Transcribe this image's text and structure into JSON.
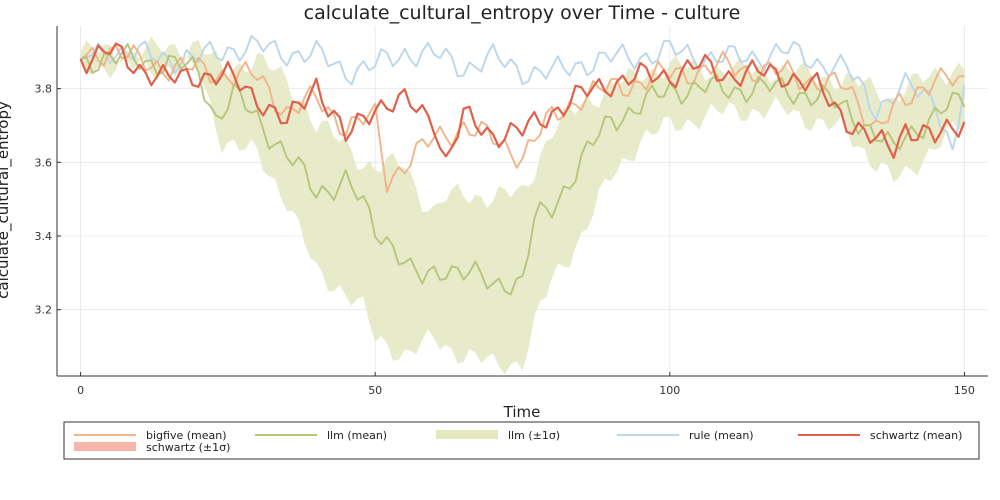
{
  "chart_data": {
    "type": "line",
    "title": "calculate_cultural_entropy over Time - culture",
    "xlabel": "Time",
    "ylabel": "calculate_cultural_entropy",
    "xlim": [
      -4,
      154
    ],
    "ylim": [
      3.02,
      3.97
    ],
    "x_ticks": [
      0,
      50,
      100,
      150
    ],
    "y_ticks": [
      3.2,
      3.4,
      3.6,
      3.8
    ],
    "x_tick_labels": [
      "0",
      "50",
      "100",
      "150"
    ],
    "y_tick_labels": [
      "3.2",
      "3.4",
      "3.6",
      "3.8"
    ],
    "grid": true,
    "legend_position": "bottom",
    "x_step": 1,
    "legend": [
      {
        "label": "bigfive (mean)",
        "kind": "line",
        "color": "#f2b48a"
      },
      {
        "label": "llm (mean)",
        "kind": "line",
        "color": "#b8c57a"
      },
      {
        "label": "llm (±1σ)",
        "kind": "band",
        "color": "#e3e8bf"
      },
      {
        "label": "rule (mean)",
        "kind": "line",
        "color": "#bcd6eb"
      },
      {
        "label": "schwartz (mean)",
        "kind": "line",
        "color": "#e0604a"
      },
      {
        "label": "schwartz (±1σ)",
        "kind": "band",
        "color": "#f5b5a8"
      }
    ],
    "series": [
      {
        "name": "llm (±1σ)",
        "kind": "band",
        "color": "#e3e8bf",
        "keypoints_x": [
          0,
          10,
          20,
          24,
          30,
          35,
          38,
          40,
          45,
          48,
          50,
          55,
          58,
          60,
          62,
          65,
          70,
          75,
          78,
          80,
          85,
          90,
          95,
          100,
          110,
          120,
          130,
          135,
          138,
          140,
          145,
          150
        ],
        "keypoints_upper": [
          3.9,
          3.9,
          3.92,
          3.85,
          3.88,
          3.82,
          3.76,
          3.7,
          3.65,
          3.6,
          3.58,
          3.6,
          3.5,
          3.46,
          3.5,
          3.52,
          3.5,
          3.52,
          3.62,
          3.68,
          3.76,
          3.8,
          3.84,
          3.86,
          3.85,
          3.85,
          3.82,
          3.8,
          3.77,
          3.8,
          3.84,
          3.86
        ],
        "keypoints_lower": [
          3.86,
          3.86,
          3.85,
          3.66,
          3.62,
          3.5,
          3.38,
          3.3,
          3.25,
          3.2,
          3.12,
          3.08,
          3.1,
          3.12,
          3.1,
          3.08,
          3.05,
          3.06,
          3.2,
          3.28,
          3.4,
          3.56,
          3.66,
          3.7,
          3.74,
          3.74,
          3.68,
          3.6,
          3.55,
          3.56,
          3.65,
          3.7
        ]
      },
      {
        "name": "rule (mean)",
        "kind": "line",
        "color": "#bcd6eb",
        "keypoints_x": [
          0,
          5,
          10,
          20,
          25,
          30,
          40,
          45,
          50,
          55,
          60,
          65,
          70,
          75,
          80,
          85,
          90,
          95,
          100,
          110,
          120,
          130,
          135,
          140,
          145,
          148,
          150
        ],
        "keypoints_y": [
          3.88,
          3.91,
          3.89,
          3.88,
          3.91,
          3.91,
          3.89,
          3.85,
          3.86,
          3.9,
          3.89,
          3.86,
          3.88,
          3.85,
          3.84,
          3.87,
          3.88,
          3.89,
          3.9,
          3.88,
          3.9,
          3.85,
          3.75,
          3.8,
          3.78,
          3.62,
          3.8
        ]
      },
      {
        "name": "bigfive (mean)",
        "kind": "line",
        "color": "#f2b48a",
        "keypoints_x": [
          0,
          5,
          10,
          20,
          25,
          30,
          35,
          40,
          45,
          50,
          52,
          55,
          60,
          65,
          70,
          75,
          80,
          85,
          90,
          100,
          110,
          120,
          130,
          135,
          140,
          145,
          150
        ],
        "keypoints_y": [
          3.88,
          3.91,
          3.87,
          3.85,
          3.84,
          3.83,
          3.74,
          3.77,
          3.7,
          3.72,
          3.55,
          3.6,
          3.66,
          3.7,
          3.66,
          3.62,
          3.72,
          3.78,
          3.8,
          3.84,
          3.86,
          3.84,
          3.8,
          3.7,
          3.76,
          3.84,
          3.8
        ]
      },
      {
        "name": "llm (mean)",
        "kind": "line",
        "color": "#b8c57a",
        "keypoints_x": [
          0,
          10,
          20,
          23,
          26,
          30,
          35,
          38,
          40,
          45,
          48,
          50,
          53,
          56,
          58,
          60,
          62,
          65,
          70,
          72,
          75,
          77,
          80,
          85,
          90,
          95,
          100,
          110,
          120,
          130,
          135,
          138,
          140,
          145,
          150
        ],
        "keypoints_y": [
          3.88,
          3.88,
          3.85,
          3.72,
          3.78,
          3.72,
          3.62,
          3.56,
          3.52,
          3.55,
          3.48,
          3.42,
          3.38,
          3.3,
          3.28,
          3.3,
          3.32,
          3.3,
          3.27,
          3.28,
          3.27,
          3.44,
          3.48,
          3.6,
          3.72,
          3.75,
          3.8,
          3.8,
          3.8,
          3.75,
          3.67,
          3.63,
          3.68,
          3.72,
          3.78
        ]
      },
      {
        "name": "schwartz (mean)",
        "kind": "line",
        "color": "#e0604a",
        "keypoints_x": [
          0,
          5,
          10,
          15,
          20,
          25,
          30,
          35,
          40,
          45,
          50,
          55,
          60,
          62,
          65,
          70,
          75,
          80,
          85,
          90,
          100,
          105,
          110,
          120,
          125,
          130,
          135,
          138,
          140,
          145,
          150
        ],
        "keypoints_y": [
          3.88,
          3.9,
          3.86,
          3.82,
          3.84,
          3.83,
          3.78,
          3.7,
          3.82,
          3.66,
          3.76,
          3.76,
          3.72,
          3.6,
          3.72,
          3.68,
          3.68,
          3.74,
          3.78,
          3.82,
          3.84,
          3.86,
          3.84,
          3.84,
          3.8,
          3.72,
          3.65,
          3.64,
          3.7,
          3.66,
          3.72
        ]
      }
    ]
  }
}
